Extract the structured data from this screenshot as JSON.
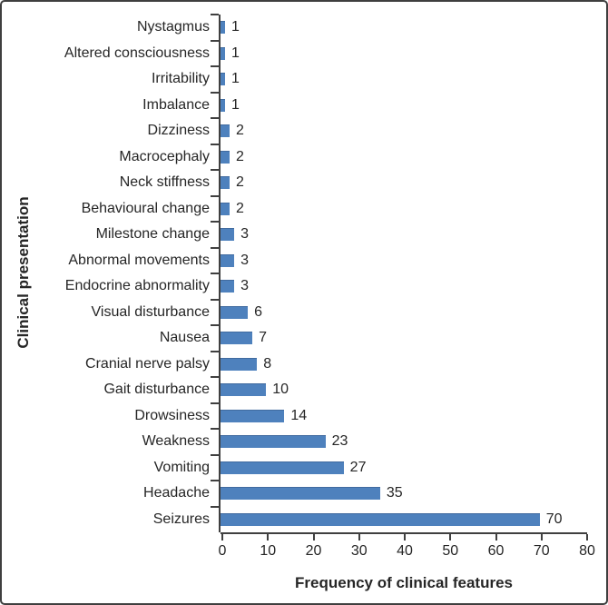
{
  "chart_data": {
    "type": "bar",
    "orientation": "horizontal",
    "title": "",
    "xlabel": "Frequency of clinical features",
    "ylabel": "Clinical presentation",
    "xlim": [
      0,
      80
    ],
    "xticks": [
      0,
      10,
      20,
      30,
      40,
      50,
      60,
      70,
      80
    ],
    "grid": false,
    "legend": "none",
    "bar_color": "#4e81bd",
    "axis_color": "#404040",
    "text_color": "#262626",
    "data_labels_shown": true,
    "categories_top_to_bottom": [
      "Nystagmus",
      "Altered consciousness",
      "Irritability",
      "Imbalance",
      "Dizziness",
      "Macrocephaly",
      "Neck stiffness",
      "Behavioural change",
      "Milestone change",
      "Abnormal movements",
      "Endocrine abnormality",
      "Visual disturbance",
      "Nausea",
      "Cranial nerve palsy",
      "Gait disturbance",
      "Drowsiness",
      "Weakness",
      "Vomiting",
      "Headache",
      "Seizures"
    ],
    "values": [
      1,
      1,
      1,
      1,
      2,
      2,
      2,
      2,
      3,
      3,
      3,
      6,
      7,
      8,
      10,
      14,
      23,
      27,
      35,
      70
    ]
  }
}
